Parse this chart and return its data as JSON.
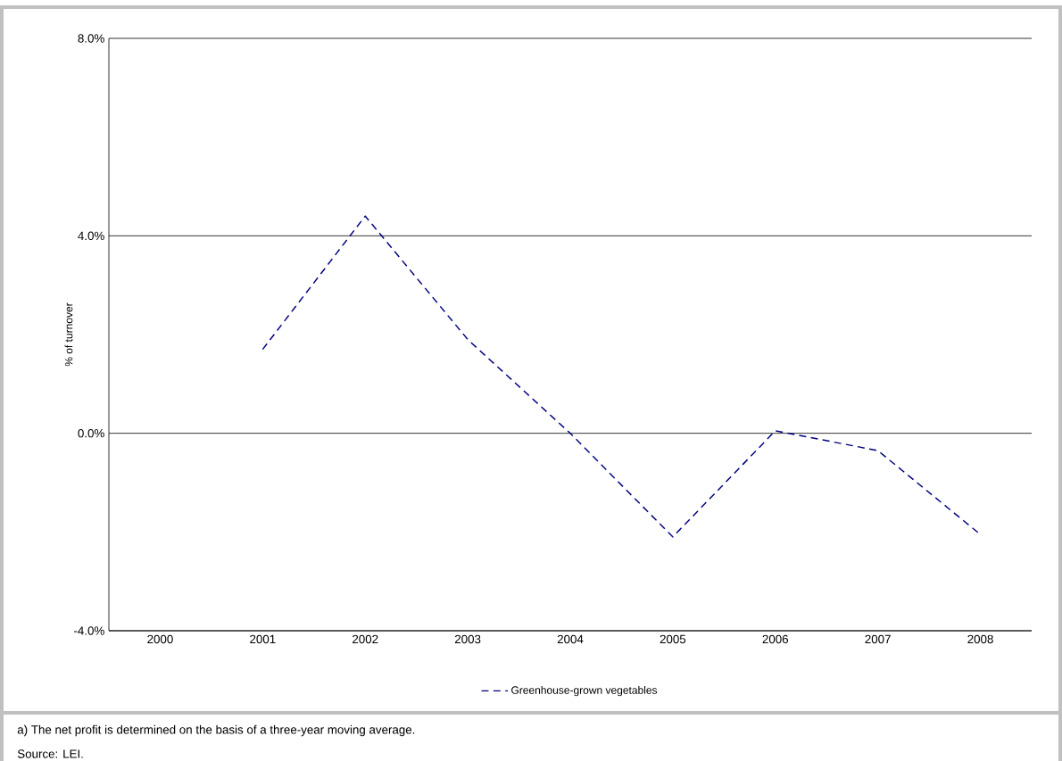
{
  "chart_data": {
    "type": "line",
    "ylabel": "% of turnover",
    "categories": [
      "2000",
      "2001",
      "2002",
      "2003",
      "2004",
      "2005",
      "2006",
      "2007",
      "2008"
    ],
    "series": [
      {
        "name": "Greenhouse-grown vegetables",
        "color": "#000080",
        "line_style": "dashed",
        "values": [
          null,
          1.7,
          4.4,
          1.9,
          0.0,
          -2.1,
          0.05,
          -0.35,
          -2.05
        ]
      }
    ],
    "ylim": [
      -4,
      8
    ],
    "yticks": [
      {
        "value": -4,
        "label": "-4.0%"
      },
      {
        "value": 0,
        "label": "0.0%"
      },
      {
        "value": 4,
        "label": "4.0%"
      },
      {
        "value": 8,
        "label": "8.0%"
      }
    ],
    "grid": "y",
    "legend": "bottom",
    "annotations": [
      "a) The net profit is determined on the basis of a three-year moving average.",
      "Source: LEI."
    ]
  }
}
